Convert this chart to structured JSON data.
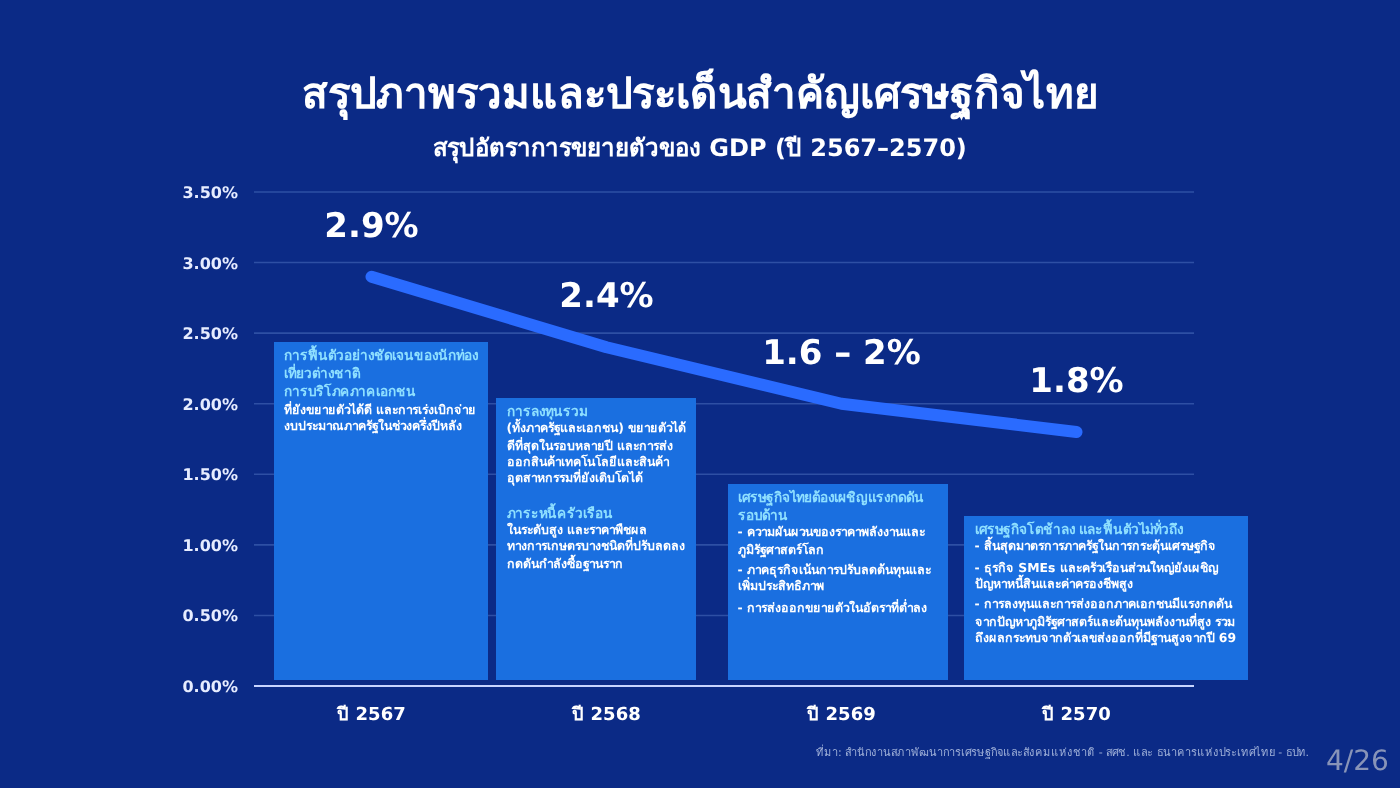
{
  "chart_data": {
    "type": "line",
    "title": "สรุปภาพรวมและประเด็นสำคัญเศรษฐกิจไทย",
    "subtitle": "สรุปอัตราการขยายตัวของ GDP (ปี 2567–2570)",
    "categories": [
      "ปี 2567",
      "ปี 2568",
      "ปี 2569",
      "ปี 2570"
    ],
    "series": [
      {
        "color": "#2a6bff",
        "values": [
          2.9,
          2.4,
          2.0,
          1.8
        ],
        "value_labels": [
          "2.9%",
          "2.4%",
          null,
          "1.8%"
        ]
      }
    ],
    "ylim": [
      0,
      3.5
    ],
    "yticks": [
      {
        "value": 0,
        "label": "0.00%"
      },
      {
        "value": 0.5,
        "label": "0.50%"
      },
      {
        "value": 1,
        "label": "1.00%"
      },
      {
        "value": 1.5,
        "label": "1.50%"
      },
      {
        "value": 2,
        "label": "2.00%"
      },
      {
        "value": 2.5,
        "label": "2.50%"
      },
      {
        "value": 3,
        "label": "3.00%"
      },
      {
        "value": 3.5,
        "label": "3.50%"
      }
    ],
    "grid": "y",
    "marker": "none",
    "line_style": "solid",
    "annotations": [
      {
        "text": "1.6 – 2%",
        "x": "ปี 2569",
        "y": 2.0
      },
      "การฟื้นตัวอย่างชัดเจนของนักท่องเที่ยวต่างชาติ",
      "การบริโภคภาคเอกชน",
      "ที่ยังขยายตัวได้ดี และการเร่งเบิกจ่ายงบประมาณภาครัฐในช่วงครึ่งปีหลัง",
      "การลงทุนรวม",
      "(ทั้งภาครัฐและเอกชน) ขยายตัวได้ดีที่สุดในรอบหลายปี และการส่งออกสินค้าเทคโนโลยีและสินค้าอุตสาหกรรมที่ยังเติบโตได้",
      "ภาระหนี้ครัวเรือน",
      "ในระดับสูง และราคาพืชผลทางการเกษตรบางชนิดที่ปรับลดลง กดดันกำลังซื้อฐานราก",
      "เศรษฐกิจไทยต้องเผชิญแรงกดดันรอบด้าน",
      "- ความผันผวนของราคาพลังงานและภูมิรัฐศาสตร์โลก",
      "- ภาคธุรกิจเน้นการปรับลดต้นทุนและเพิ่มประสิทธิภาพ",
      "- การส่งออกขยายตัวในอัตราที่ต่ำลง",
      "เศรษฐกิจโตช้าลง และฟื้นตัวไม่ทั่วถึง",
      "- สิ้นสุดมาตรการภาครัฐในการกระตุ้นเศรษฐกิจ",
      "- ธุรกิจ SMEs และครัวเรือนส่วนใหญ่ยังเผชิญปัญหาหนี้สินและค่าครองชีพสูง",
      "- การลงทุนและการส่งออกภาคเอกชนมีแรงกดดันจากปัญหาภูมิรัฐศาสตร์และต้นทุนพลังงานที่สูง รวมถึงผลกระทบจากตัวเลขส่งออกที่มีฐานสูงจากปี 69",
      "ที่มา: สำนักงานสภาพัฒนาการเศรษฐกิจและสังคมแห่งชาติ - สศช. และ ธนาคารแห่งประเทศไทย - ธปท.",
      "4/26"
    ]
  }
}
